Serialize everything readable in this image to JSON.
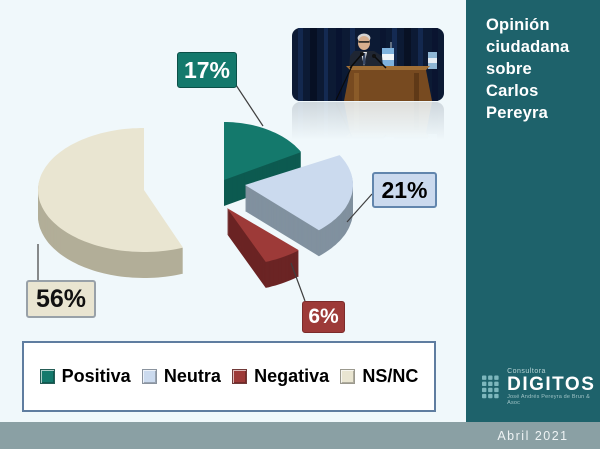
{
  "sidebar": {
    "title": "Opinión\nciudadana\nsobre\nCarlos\nPereyra",
    "bg_color": "#1e626b"
  },
  "chart_data": {
    "type": "pie",
    "style": "3d-exploded",
    "title": "Opinión ciudadana sobre Carlos Pereyra",
    "labels": [
      "Positiva",
      "Neutra",
      "Negativa",
      "NS/NC"
    ],
    "values": [
      17,
      21,
      6,
      56
    ],
    "unit": "%",
    "display_labels": [
      "17%",
      "21%",
      "6%",
      "56%"
    ],
    "colors": [
      "#14796c",
      "#cbdaee",
      "#9d3a38",
      "#e9e5d1"
    ],
    "side_colors": [
      "#0d5a50",
      "#81919f",
      "#6b2424",
      "#b2ae98"
    ],
    "legend_position": "bottom",
    "start_angle_deg": 90,
    "direction": "clockwise"
  },
  "footer": {
    "date": "Abril 2021",
    "strip_color": "#8aa0a4"
  },
  "logo": {
    "brand_top": "Consultora",
    "brand": "DIGITOS",
    "brand_sub": "José Andrés Pereyra de Brun & Asoc"
  }
}
